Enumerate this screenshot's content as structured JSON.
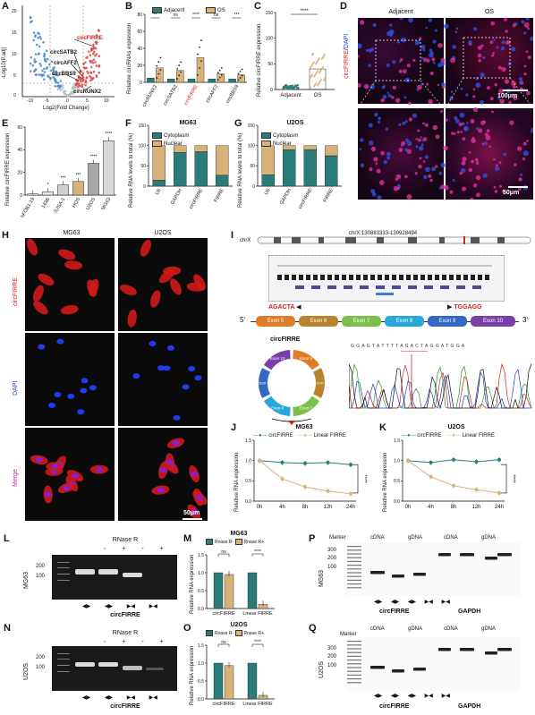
{
  "colors": {
    "teal": "#2a7d77",
    "tan": "#d9b27a",
    "red": "#d42020",
    "micro_bg": "#0b0b0b"
  },
  "panelA": {
    "label": "A",
    "ylabel": "-Log10(P.adj)",
    "xlabel": "Log2(Fold Change)",
    "yticks": [
      "20",
      "15",
      "10",
      "5",
      "0"
    ],
    "xticks": [
      "-10",
      "-5",
      "0",
      "5",
      "10"
    ],
    "annotations": [
      "circFIRRE",
      "circSATB2",
      "circAFF2",
      "circBBS9",
      "circRUNX2"
    ]
  },
  "panelB": {
    "label": "B",
    "ylabel": "Relative circRNAs expression",
    "legend": [
      "Adjacent",
      "OS"
    ],
    "yticks": [
      "80",
      "60",
      "40",
      "20",
      "0"
    ],
    "categories": [
      "circRUNX2",
      "circSATB2",
      "circFIRRE",
      "circAFF2",
      "circBBS9"
    ],
    "sig": [
      "**",
      "ns",
      "****",
      "ns",
      "***"
    ]
  },
  "panelC": {
    "label": "C",
    "ylabel": "Relative circFIRRE expression",
    "yticks": [
      "150",
      "100",
      "50",
      "0"
    ],
    "categories": [
      "Adjacent",
      "OS"
    ],
    "sig": "****"
  },
  "panelD": {
    "label": "D",
    "cols": [
      "Adjacent",
      "OS"
    ],
    "stain_left": "circFIRRE",
    "stain_right": "DAPI",
    "scale1": "100μm",
    "scale2": "50μm"
  },
  "panelE": {
    "label": "E",
    "ylabel": "Relative circFIRRE expression",
    "yticks": [
      "60",
      "40",
      "20",
      "0"
    ],
    "categories": [
      "hFOB1.19",
      "143B",
      "SJSA-1",
      "HOS",
      "U2OS",
      "MG63"
    ],
    "sig": [
      "*",
      "***",
      "***",
      "****",
      "****"
    ]
  },
  "panelF": {
    "label": "F",
    "title": "MG63",
    "ylabel": "Relative RNA levels to total (%)",
    "yticks": [
      "150",
      "100",
      "50",
      "0"
    ],
    "legend": [
      "Cytoplasm",
      "Nuclear"
    ],
    "categories": [
      "U6",
      "GAPDH",
      "circFIRRE",
      "FIRRE"
    ]
  },
  "panelG": {
    "label": "G",
    "title": "U2OS",
    "ylabel": "Relative RNA levels to total (%)",
    "yticks": [
      "150",
      "100",
      "50",
      "0"
    ],
    "legend": [
      "Cytoplasm",
      "Nuclear"
    ],
    "categories": [
      "U6",
      "GAPDH",
      "circFIRRE",
      "FIRRE"
    ]
  },
  "panelH": {
    "label": "H",
    "cols": [
      "MG63",
      "U2OS"
    ],
    "rows": [
      "circFIRRE",
      "DAPI",
      "Merge"
    ],
    "scale": "50μm"
  },
  "panelI": {
    "label": "I",
    "chrom": "chrX",
    "locus": "chrX:130883333-130928494",
    "primer_left": "AGACTA",
    "primer_right": "TGGAGG",
    "five": "5'",
    "three": "3'",
    "exons_linear": [
      "Exon 5",
      "Exon 6",
      "Exon 7",
      "Exon 8",
      "Exon 9",
      "Exon 10"
    ],
    "circ_title": "circFIRRE",
    "circ_exons": [
      "Exon 5",
      "Exon 6",
      "Exon 7",
      "Exon 8",
      "Exon 9",
      "Exon 10"
    ],
    "sequence": "G G A G T A T T T T A G A C T A G G A T G G A"
  },
  "panelJ": {
    "label": "J",
    "title": "MG63",
    "ylabel": "Relative RNA expression",
    "legend": [
      "circFIRRE",
      "Linear FIRRE"
    ],
    "yticks": [
      "1.5",
      "1.0",
      "0.5",
      "0.0"
    ],
    "xticks": [
      "0h",
      "4h",
      "8h",
      "12h",
      "24h"
    ],
    "sig": "****"
  },
  "panelK": {
    "label": "K",
    "title": "U2OS",
    "ylabel": "Relative RNA expression",
    "legend": [
      "circFIRRE",
      "Linear FIRRE"
    ],
    "yticks": [
      "1.5",
      "1.0",
      "0.5",
      "0.0"
    ],
    "xticks": [
      "0h",
      "4h",
      "8h",
      "12h",
      "24h"
    ],
    "sig": "****"
  },
  "panelL": {
    "label": "L",
    "cell": "MG63",
    "title": "RNase R",
    "signs": [
      "-",
      "+",
      "-",
      "+"
    ],
    "ladder": [
      "200",
      "100"
    ],
    "gene": "circFIRRE"
  },
  "panelM": {
    "label": "M",
    "title": "MG63",
    "ylabel": "Relative RNA expression",
    "legend": [
      "Rnase R-",
      "Rnase R+"
    ],
    "yticks": [
      "1.5",
      "1.0",
      "0.5",
      "0.0"
    ],
    "categories": [
      "circFIRRE",
      "Linear FIRRE"
    ],
    "sig": [
      "ns",
      "****"
    ]
  },
  "panelN": {
    "label": "N",
    "cell": "U2OS",
    "title": "RNase R",
    "signs": [
      "-",
      "+",
      "-",
      "+"
    ],
    "ladder": [
      "200",
      "100"
    ],
    "gene": "circFIRRE"
  },
  "panelO": {
    "label": "O",
    "title": "U2OS",
    "ylabel": "Relative RNA expression",
    "legend": [
      "Rnase R-",
      "Rnase R+"
    ],
    "yticks": [
      "1.5",
      "1.0",
      "0.5",
      "0.0"
    ],
    "categories": [
      "circFIRRE",
      "Linear FIRRE"
    ],
    "sig": [
      "ns",
      "****"
    ]
  },
  "panelP": {
    "label": "P",
    "cell": "MG63",
    "marker": "Marker",
    "groups": [
      "cDNA",
      "gDNA",
      "cDNA",
      "gDNA"
    ],
    "ladder": [
      "300",
      "200",
      "100"
    ],
    "genes": [
      "circFIRRE",
      "GAPDH"
    ]
  },
  "panelQ": {
    "label": "Q",
    "cell": "U2OS",
    "marker": "Marker",
    "groups": [
      "cDNA",
      "gDNA",
      "cDNA",
      "gDNA"
    ],
    "ladder": [
      "300",
      "200",
      "100"
    ],
    "genes": [
      "circFIRRE",
      "GAPDH"
    ]
  },
  "chart_data": [
    {
      "panel": "B",
      "type": "bar",
      "categories": [
        "circRUNX2",
        "circSATB2",
        "circFIRRE",
        "circAFF2",
        "circBBS9"
      ],
      "series": [
        {
          "name": "Adjacent",
          "values": [
            5,
            4,
            4,
            4,
            4
          ]
        },
        {
          "name": "OS",
          "values": [
            17,
            14,
            29,
            10,
            9
          ]
        }
      ],
      "ylim": [
        0,
        80
      ]
    },
    {
      "panel": "C",
      "type": "bar",
      "categories": [
        "Adjacent",
        "OS"
      ],
      "values": [
        5,
        40
      ],
      "ylim": [
        0,
        150
      ]
    },
    {
      "panel": "E",
      "type": "bar",
      "categories": [
        "hFOB1.19",
        "143B",
        "SJSA-1",
        "HOS",
        "U2OS",
        "MG63"
      ],
      "values": [
        1,
        3,
        9,
        12,
        28,
        48
      ],
      "ylim": [
        0,
        60
      ]
    },
    {
      "panel": "F",
      "type": "bar",
      "categories": [
        "U6",
        "GAPDH",
        "circFIRRE",
        "FIRRE"
      ],
      "series": [
        {
          "name": "Cytoplasm",
          "values": [
            15,
            83,
            85,
            27
          ]
        },
        {
          "name": "Nuclear",
          "values": [
            85,
            17,
            15,
            73
          ]
        }
      ],
      "ylim": [
        0,
        150
      ]
    },
    {
      "panel": "G",
      "type": "bar",
      "categories": [
        "U6",
        "GAPDH",
        "circFIRRE",
        "FIRRE"
      ],
      "series": [
        {
          "name": "Cytoplasm",
          "values": [
            28,
            90,
            90,
            75
          ]
        },
        {
          "name": "Nuclear",
          "values": [
            72,
            10,
            10,
            25
          ]
        }
      ],
      "ylim": [
        0,
        150
      ]
    },
    {
      "panel": "J",
      "type": "line",
      "x": [
        "0h",
        "4h",
        "8h",
        "12h",
        "24h"
      ],
      "series": [
        {
          "name": "circFIRRE",
          "values": [
            1.0,
            0.95,
            0.93,
            0.95,
            0.9
          ]
        },
        {
          "name": "Linear FIRRE",
          "values": [
            1.0,
            0.55,
            0.35,
            0.25,
            0.18
          ]
        }
      ],
      "ylim": [
        0,
        1.5
      ]
    },
    {
      "panel": "K",
      "type": "line",
      "x": [
        "0h",
        "4h",
        "8h",
        "12h",
        "24h"
      ],
      "series": [
        {
          "name": "circFIRRE",
          "values": [
            1.0,
            0.95,
            1.02,
            0.97,
            1.02
          ]
        },
        {
          "name": "Linear FIRRE",
          "values": [
            1.0,
            0.6,
            0.38,
            0.28,
            0.2
          ]
        }
      ],
      "ylim": [
        0,
        1.5
      ]
    },
    {
      "panel": "M",
      "type": "bar",
      "categories": [
        "circFIRRE",
        "Linear FIRRE"
      ],
      "series": [
        {
          "name": "Rnase R-",
          "values": [
            1.0,
            1.0
          ]
        },
        {
          "name": "Rnase R+",
          "values": [
            0.95,
            0.12
          ]
        }
      ],
      "ylim": [
        0,
        1.5
      ]
    },
    {
      "panel": "O",
      "type": "bar",
      "categories": [
        "circFIRRE",
        "Linear FIRRE"
      ],
      "series": [
        {
          "name": "Rnase R-",
          "values": [
            1.0,
            1.0
          ]
        },
        {
          "name": "Rnase R+",
          "values": [
            0.93,
            0.1
          ]
        }
      ],
      "ylim": [
        0,
        1.5
      ]
    }
  ]
}
